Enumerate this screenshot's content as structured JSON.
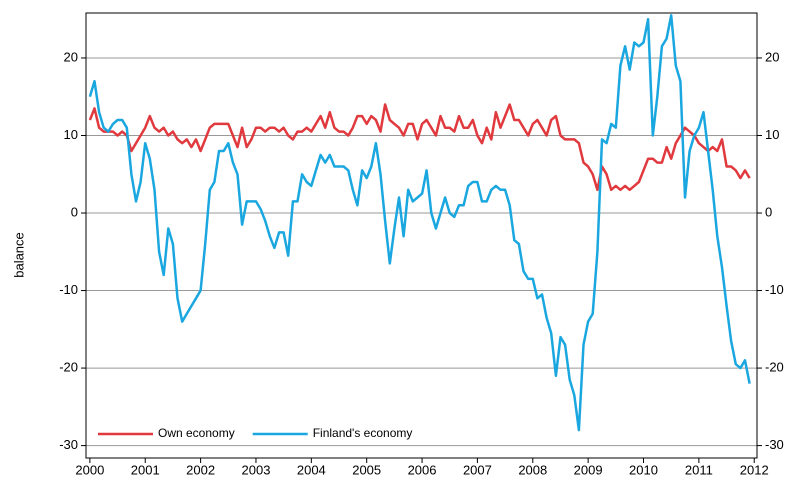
{
  "chart_data": {
    "type": "line",
    "y_label": "balance",
    "xlim": [
      1999.93,
      2012.05
    ],
    "ylim": [
      -31.6,
      25.8
    ],
    "xticks": [
      2000,
      2001,
      2002,
      2003,
      2004,
      2005,
      2006,
      2007,
      2008,
      2009,
      2010,
      2011,
      2012
    ],
    "yticks": [
      -30,
      -20,
      -10,
      0,
      10,
      20
    ],
    "y2ticks": [
      -30,
      -20,
      -10,
      0,
      10,
      20
    ],
    "grid": true,
    "legend": "lower left",
    "x": [
      2000,
      2000.083,
      2000.167,
      2000.25,
      2000.333,
      2000.417,
      2000.5,
      2000.583,
      2000.667,
      2000.75,
      2000.833,
      2000.917,
      2001,
      2001.083,
      2001.167,
      2001.25,
      2001.333,
      2001.417,
      2001.5,
      2001.583,
      2001.667,
      2001.75,
      2001.833,
      2001.917,
      2002,
      2002.083,
      2002.167,
      2002.25,
      2002.333,
      2002.417,
      2002.5,
      2002.583,
      2002.667,
      2002.75,
      2002.833,
      2002.917,
      2003,
      2003.083,
      2003.167,
      2003.25,
      2003.333,
      2003.417,
      2003.5,
      2003.583,
      2003.667,
      2003.75,
      2003.833,
      2003.917,
      2004,
      2004.083,
      2004.167,
      2004.25,
      2004.333,
      2004.417,
      2004.5,
      2004.583,
      2004.667,
      2004.75,
      2004.833,
      2004.917,
      2005,
      2005.083,
      2005.167,
      2005.25,
      2005.333,
      2005.417,
      2005.5,
      2005.583,
      2005.667,
      2005.75,
      2005.833,
      2005.917,
      2006,
      2006.083,
      2006.167,
      2006.25,
      2006.333,
      2006.417,
      2006.5,
      2006.583,
      2006.667,
      2006.75,
      2006.833,
      2006.917,
      2007,
      2007.083,
      2007.167,
      2007.25,
      2007.333,
      2007.417,
      2007.5,
      2007.583,
      2007.667,
      2007.75,
      2007.833,
      2007.917,
      2008,
      2008.083,
      2008.167,
      2008.25,
      2008.333,
      2008.417,
      2008.5,
      2008.583,
      2008.667,
      2008.75,
      2008.833,
      2008.917,
      2009,
      2009.083,
      2009.167,
      2009.25,
      2009.333,
      2009.417,
      2009.5,
      2009.583,
      2009.667,
      2009.75,
      2009.833,
      2009.917,
      2010,
      2010.083,
      2010.167,
      2010.25,
      2010.333,
      2010.417,
      2010.5,
      2010.583,
      2010.667,
      2010.75,
      2010.833,
      2010.917,
      2011,
      2011.083,
      2011.167,
      2011.25,
      2011.333,
      2011.417,
      2011.5,
      2011.583,
      2011.667,
      2011.75,
      2011.833,
      2011.917
    ],
    "series": [
      {
        "name": "Own economy",
        "color": "#e0393e",
        "values": [
          12,
          13.5,
          11,
          10.5,
          10.5,
          10.5,
          10,
          10.5,
          10,
          8,
          9,
          10,
          11,
          12.5,
          11,
          10.5,
          11,
          10,
          10.5,
          9.5,
          9,
          9.5,
          8.5,
          9.5,
          8,
          9.5,
          11,
          11.5,
          11.5,
          11.5,
          11.5,
          10,
          8.5,
          11,
          8.5,
          9.5,
          11,
          11,
          10.5,
          11,
          11,
          10.5,
          11,
          10,
          9.5,
          10.5,
          10.5,
          11,
          10.5,
          11.5,
          12.5,
          11,
          13,
          11,
          10.5,
          10.5,
          10,
          11,
          12.5,
          12.5,
          11.5,
          12.5,
          12,
          10.5,
          14,
          12,
          11.5,
          11,
          10,
          11.5,
          11.5,
          9.5,
          11.5,
          12,
          11,
          10,
          12.5,
          11,
          11,
          10.5,
          12.5,
          11,
          11,
          12,
          10,
          9,
          11,
          9.5,
          13,
          11,
          12.5,
          14,
          12,
          12,
          11,
          10,
          11.5,
          12,
          11,
          10,
          12,
          12.5,
          10,
          9.5,
          9.5,
          9.5,
          9,
          6.5,
          6,
          5,
          3,
          6,
          5,
          3,
          3.5,
          3,
          3.5,
          3,
          3.5,
          4,
          5.5,
          7,
          7,
          6.5,
          6.5,
          8.5,
          7,
          9,
          10,
          11,
          10.5,
          10,
          9,
          8.5,
          8,
          8.5,
          8,
          9.5,
          6,
          6,
          5.5,
          4.5,
          5.5,
          4.5
        ]
      },
      {
        "name": "Finland's economy",
        "color": "#1aa7e0",
        "values": [
          15,
          17,
          13,
          11,
          10.5,
          11.5,
          12,
          12,
          11,
          5,
          1.5,
          4,
          9,
          7,
          3,
          -5,
          -8,
          -2,
          -4,
          -11,
          -14,
          -13,
          -12,
          -11,
          -10,
          -4,
          3,
          4,
          8,
          8,
          9,
          6.5,
          5,
          -1.5,
          1.5,
          1.5,
          1.5,
          0.5,
          -1,
          -3,
          -4.5,
          -2.5,
          -2.5,
          -5.5,
          1.5,
          1.5,
          5,
          4,
          3.5,
          5.5,
          7.5,
          6.5,
          7.5,
          6,
          6,
          6,
          5.5,
          3,
          1,
          5.5,
          4.5,
          6,
          9,
          5,
          -1,
          -6.5,
          -2,
          2,
          -3,
          3,
          1.5,
          2,
          2.5,
          5.5,
          0,
          -2,
          0,
          2,
          0,
          -0.5,
          1,
          1,
          3.5,
          4,
          4,
          1.5,
          1.5,
          3,
          3.5,
          3,
          3,
          1,
          -3.5,
          -4,
          -7.5,
          -8.5,
          -8.5,
          -11,
          -10.5,
          -13.5,
          -15.5,
          -21,
          -16,
          -17,
          -21.5,
          -23.5,
          -28,
          -17,
          -14,
          -13,
          -5,
          9.5,
          9,
          11.5,
          11,
          19,
          21.5,
          18.5,
          22,
          21.5,
          22,
          25,
          10,
          15,
          21.5,
          22.5,
          25.5,
          19,
          17,
          2,
          8,
          10,
          11,
          13,
          8,
          3,
          -3,
          -7,
          -12,
          -16.5,
          -19.5,
          -20,
          -19,
          -22
        ]
      }
    ]
  }
}
